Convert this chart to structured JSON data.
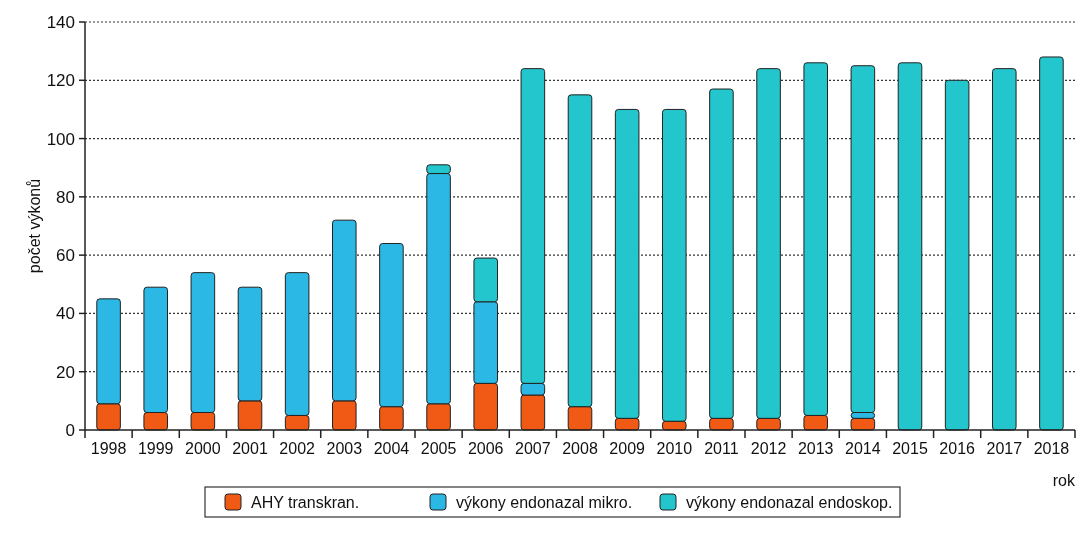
{
  "chart_data": {
    "type": "bar",
    "stacked": true,
    "xlabel": "rok",
    "ylabel": "počet výkonů",
    "categories": [
      "1998",
      "1999",
      "2000",
      "2001",
      "2002",
      "2003",
      "2004",
      "2005",
      "2006",
      "2007",
      "2008",
      "2009",
      "2010",
      "2011",
      "2012",
      "2013",
      "2014",
      "2015",
      "2016",
      "2017",
      "2018"
    ],
    "series": [
      {
        "name": "AHY transkran.",
        "color": "#f05a14",
        "values": [
          9,
          6,
          6,
          10,
          5,
          10,
          8,
          9,
          16,
          12,
          8,
          4,
          3,
          4,
          4,
          5,
          4,
          null,
          0,
          null,
          0
        ]
      },
      {
        "name": "výkony endonazal mikro.",
        "color": "#2cb8e4",
        "values": [
          36,
          43,
          48,
          39,
          49,
          62,
          56,
          79,
          28,
          4,
          0,
          0,
          0,
          0,
          0,
          0,
          2,
          0,
          0,
          0,
          0
        ]
      },
      {
        "name": "výkony endonazal endoskop.",
        "color": "#22c6cc",
        "values": [
          0,
          0,
          0,
          0,
          0,
          0,
          0,
          3,
          15,
          108,
          107,
          106,
          107,
          113,
          120,
          121,
          119,
          126,
          120,
          124,
          128
        ]
      }
    ],
    "ylim": [
      0,
      140
    ],
    "yticks": [
      0,
      20,
      40,
      60,
      80,
      100,
      120,
      140
    ],
    "grid": "y",
    "legend": "bottom"
  }
}
